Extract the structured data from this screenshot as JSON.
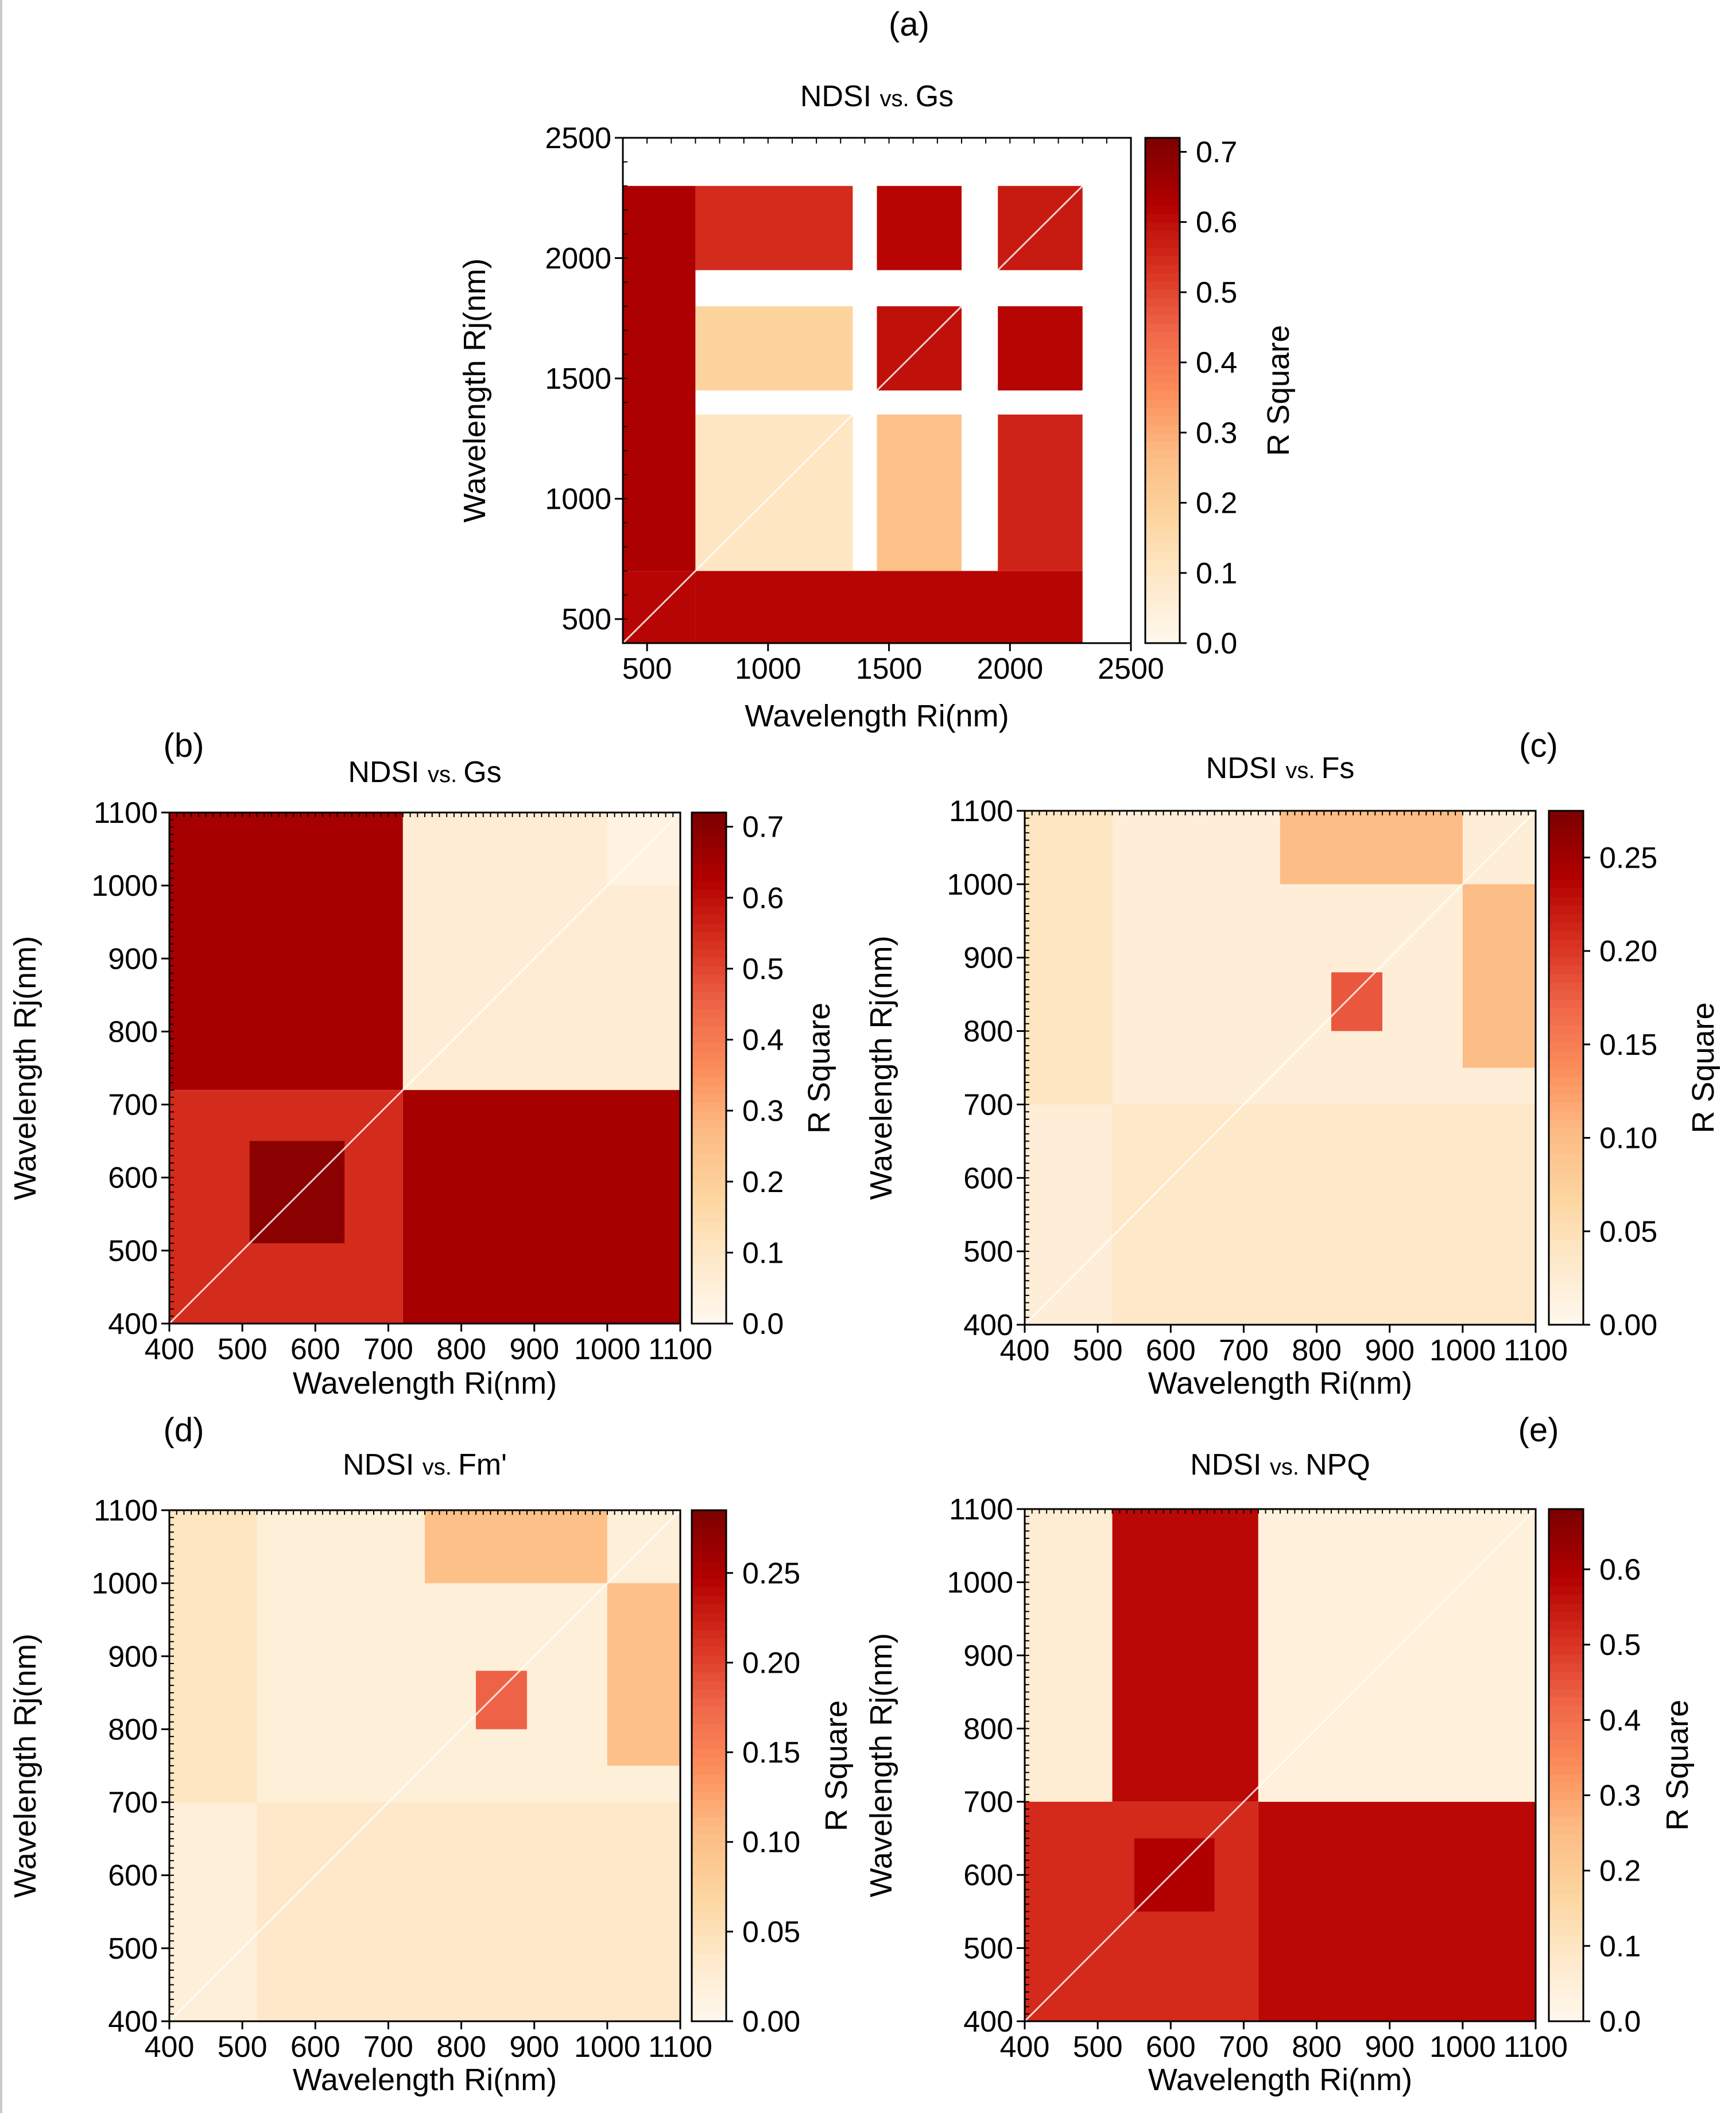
{
  "figure": {
    "background": "#ffffff",
    "text_color": "#000000",
    "colormap": [
      "#fff7ec",
      "#fee8c8",
      "#fdd49e",
      "#fdbb84",
      "#fc8d59",
      "#ef6548",
      "#d7301f",
      "#b30000",
      "#7f0000"
    ]
  },
  "chart_data": [
    {
      "id": "a",
      "panel_label": "(a)",
      "type": "heatmap",
      "title_main": "NDSI",
      "title_vs": "vs.",
      "title_var": "Gs",
      "xlabel": "Wavelength Ri(nm)",
      "ylabel": "Wavelength Rj(nm)",
      "colorbar_label": "R Square",
      "xlim": [
        400,
        2500
      ],
      "ylim": [
        400,
        2500
      ],
      "xticks": [
        500,
        1000,
        1500,
        2000,
        2500
      ],
      "yticks": [
        500,
        1000,
        1500,
        2000,
        2500
      ],
      "clim": [
        0,
        0.72
      ],
      "colorbar_ticks": [
        "0.0",
        "0.1",
        "0.2",
        "0.3",
        "0.4",
        "0.5",
        "0.6",
        "0.7"
      ],
      "colorbar_tick_values": [
        0,
        0.1,
        0.2,
        0.3,
        0.4,
        0.5,
        0.6,
        0.7
      ],
      "valid_bands": [
        [
          400,
          1350
        ],
        [
          1450,
          1800
        ],
        [
          1950,
          2300
        ]
      ],
      "cells": [
        {
          "x": [
            400,
            700
          ],
          "y": [
            400,
            700
          ],
          "v": 0.62
        },
        {
          "x": [
            400,
            700
          ],
          "y": [
            700,
            2300
          ],
          "v": 0.64
        },
        {
          "x": [
            700,
            2300
          ],
          "y": [
            400,
            700
          ],
          "v": 0.62
        },
        {
          "x": [
            700,
            1350
          ],
          "y": [
            700,
            1350
          ],
          "v": 0.1
        },
        {
          "x": [
            1450,
            1800
          ],
          "y": [
            700,
            1350
          ],
          "v": 0.25
        },
        {
          "x": [
            1950,
            2300
          ],
          "y": [
            700,
            1350
          ],
          "v": 0.56
        },
        {
          "x": [
            700,
            1350
          ],
          "y": [
            1450,
            1800
          ],
          "v": 0.18
        },
        {
          "x": [
            1450,
            1800
          ],
          "y": [
            1450,
            1800
          ],
          "v": 0.6
        },
        {
          "x": [
            1950,
            2300
          ],
          "y": [
            1450,
            1800
          ],
          "v": 0.62
        },
        {
          "x": [
            700,
            1350
          ],
          "y": [
            1950,
            2300
          ],
          "v": 0.55
        },
        {
          "x": [
            1450,
            1800
          ],
          "y": [
            1950,
            2300
          ],
          "v": 0.62
        },
        {
          "x": [
            1950,
            2300
          ],
          "y": [
            1950,
            2300
          ],
          "v": 0.58
        }
      ]
    },
    {
      "id": "b",
      "panel_label": "(b)",
      "type": "heatmap",
      "title_main": "NDSI",
      "title_vs": "vs.",
      "title_var": "Gs",
      "xlabel": "Wavelength Ri(nm)",
      "ylabel": "Wavelength Rj(nm)",
      "colorbar_label": "R Square",
      "xlim": [
        400,
        1100
      ],
      "ylim": [
        400,
        1100
      ],
      "xticks": [
        400,
        500,
        600,
        700,
        800,
        900,
        1000,
        1100
      ],
      "yticks": [
        400,
        500,
        600,
        700,
        800,
        900,
        1000,
        1100
      ],
      "clim": [
        0,
        0.72
      ],
      "colorbar_ticks": [
        "0.0",
        "0.1",
        "0.2",
        "0.3",
        "0.4",
        "0.5",
        "0.6",
        "0.7"
      ],
      "colorbar_tick_values": [
        0,
        0.1,
        0.2,
        0.3,
        0.4,
        0.5,
        0.6,
        0.7
      ],
      "cells": [
        {
          "x": [
            400,
            720
          ],
          "y": [
            720,
            1100
          ],
          "v": 0.65
        },
        {
          "x": [
            720,
            1100
          ],
          "y": [
            400,
            720
          ],
          "v": 0.65
        },
        {
          "x": [
            400,
            720
          ],
          "y": [
            400,
            720
          ],
          "v": 0.55
        },
        {
          "x": [
            720,
            1100
          ],
          "y": [
            720,
            1100
          ],
          "v": 0.06
        },
        {
          "x": [
            1000,
            1100
          ],
          "y": [
            1000,
            1100
          ],
          "v": 0.03
        },
        {
          "x": [
            510,
            640
          ],
          "y": [
            510,
            650
          ],
          "v": 0.7
        }
      ]
    },
    {
      "id": "c",
      "panel_label": "(c)",
      "type": "heatmap",
      "title_main": "NDSI",
      "title_vs": "vs.",
      "title_var": "Fs",
      "xlabel": "Wavelength Ri(nm)",
      "ylabel": "Wavelength Rj(nm)",
      "colorbar_label": "R Square",
      "xlim": [
        400,
        1100
      ],
      "ylim": [
        400,
        1100
      ],
      "xticks": [
        400,
        500,
        600,
        700,
        800,
        900,
        1000,
        1100
      ],
      "yticks": [
        400,
        500,
        600,
        700,
        800,
        900,
        1000,
        1100
      ],
      "clim": [
        0,
        0.275
      ],
      "colorbar_ticks": [
        "0.00",
        "0.05",
        "0.10",
        "0.15",
        "0.20",
        "0.25"
      ],
      "colorbar_tick_values": [
        0,
        0.05,
        0.1,
        0.15,
        0.2,
        0.25
      ],
      "cells": [
        {
          "x": [
            400,
            1100
          ],
          "y": [
            400,
            1100
          ],
          "v": 0.02
        },
        {
          "x": [
            520,
            1100
          ],
          "y": [
            400,
            700
          ],
          "v": 0.035
        },
        {
          "x": [
            400,
            520
          ],
          "y": [
            700,
            1100
          ],
          "v": 0.04
        },
        {
          "x": [
            1000,
            1100
          ],
          "y": [
            750,
            1000
          ],
          "v": 0.1
        },
        {
          "x": [
            750,
            1000
          ],
          "y": [
            1000,
            1100
          ],
          "v": 0.1
        },
        {
          "x": [
            820,
            890
          ],
          "y": [
            800,
            880
          ],
          "v": 0.18
        }
      ]
    },
    {
      "id": "d",
      "panel_label": "(d)",
      "type": "heatmap",
      "title_main": "NDSI",
      "title_vs": "vs.",
      "title_var": "Fm'",
      "xlabel": "Wavelength Ri(nm)",
      "ylabel": "Wavelength Rj(nm)",
      "colorbar_label": "R Square",
      "xlim": [
        400,
        1100
      ],
      "ylim": [
        400,
        1100
      ],
      "xticks": [
        400,
        500,
        600,
        700,
        800,
        900,
        1000,
        1100
      ],
      "yticks": [
        400,
        500,
        600,
        700,
        800,
        900,
        1000,
        1100
      ],
      "clim": [
        0,
        0.285
      ],
      "colorbar_ticks": [
        "0.00",
        "0.05",
        "0.10",
        "0.15",
        "0.20",
        "0.25"
      ],
      "colorbar_tick_values": [
        0,
        0.05,
        0.1,
        0.15,
        0.2,
        0.25
      ],
      "cells": [
        {
          "x": [
            400,
            1100
          ],
          "y": [
            400,
            1100
          ],
          "v": 0.02
        },
        {
          "x": [
            520,
            1100
          ],
          "y": [
            400,
            700
          ],
          "v": 0.035
        },
        {
          "x": [
            400,
            520
          ],
          "y": [
            700,
            1100
          ],
          "v": 0.04
        },
        {
          "x": [
            1000,
            1100
          ],
          "y": [
            750,
            1000
          ],
          "v": 0.1
        },
        {
          "x": [
            750,
            1000
          ],
          "y": [
            1000,
            1100
          ],
          "v": 0.1
        },
        {
          "x": [
            820,
            890
          ],
          "y": [
            800,
            880
          ],
          "v": 0.18
        }
      ]
    },
    {
      "id": "e",
      "panel_label": "(e)",
      "type": "heatmap",
      "title_main": "NDSI",
      "title_vs": "vs.",
      "title_var": "NPQ",
      "xlabel": "Wavelength Ri(nm)",
      "ylabel": "Wavelength Rj(nm)",
      "colorbar_label": "R Square",
      "xlim": [
        400,
        1100
      ],
      "ylim": [
        400,
        1100
      ],
      "xticks": [
        400,
        500,
        600,
        700,
        800,
        900,
        1000,
        1100
      ],
      "yticks": [
        400,
        500,
        600,
        700,
        800,
        900,
        1000,
        1100
      ],
      "clim": [
        0,
        0.68
      ],
      "colorbar_ticks": [
        "0.0",
        "0.1",
        "0.2",
        "0.3",
        "0.4",
        "0.5",
        "0.6"
      ],
      "colorbar_tick_values": [
        0,
        0.1,
        0.2,
        0.3,
        0.4,
        0.5,
        0.6
      ],
      "cells": [
        {
          "x": [
            400,
            520
          ],
          "y": [
            700,
            1100
          ],
          "v": 0.06
        },
        {
          "x": [
            520,
            720
          ],
          "y": [
            700,
            1100
          ],
          "v": 0.58
        },
        {
          "x": [
            720,
            1100
          ],
          "y": [
            400,
            700
          ],
          "v": 0.58
        },
        {
          "x": [
            400,
            720
          ],
          "y": [
            400,
            700
          ],
          "v": 0.52
        },
        {
          "x": [
            720,
            1100
          ],
          "y": [
            700,
            1100
          ],
          "v": 0.04
        },
        {
          "x": [
            550,
            660
          ],
          "y": [
            550,
            650
          ],
          "v": 0.6
        }
      ]
    }
  ]
}
